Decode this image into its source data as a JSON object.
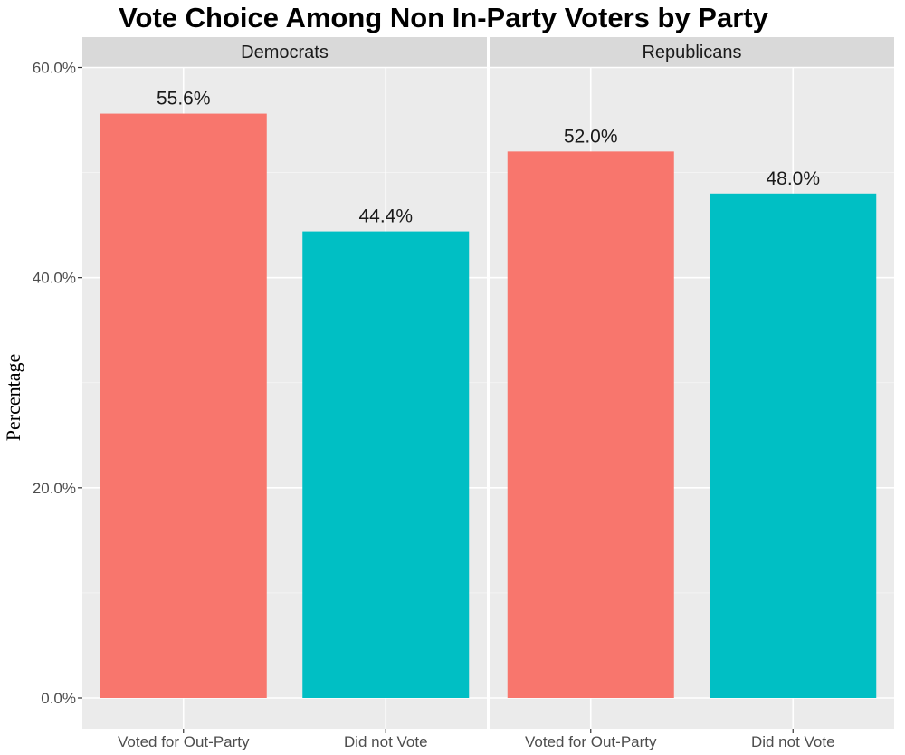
{
  "chart_data": {
    "type": "bar",
    "title": "Vote Choice Among Non In-Party Voters by Party",
    "ylabel": "Percentage",
    "xlabel": "",
    "ylim": [
      0,
      62
    ],
    "yticks": [
      "0.0%",
      "20.0%",
      "40.0%",
      "60.0%"
    ],
    "ytick_values": [
      0,
      20,
      40,
      60
    ],
    "grid": true,
    "legend": "none",
    "colors": {
      "Voted for Out-Party": "#F8766D",
      "Did not Vote": "#00BFC4"
    },
    "facets": [
      {
        "name": "Democrats",
        "categories": [
          "Voted for Out-Party",
          "Did not Vote"
        ],
        "values": [
          55.6,
          44.4
        ],
        "labels": [
          "55.6%",
          "44.4%"
        ]
      },
      {
        "name": "Republicans",
        "categories": [
          "Voted for Out-Party",
          "Did not Vote"
        ],
        "values": [
          52.0,
          48.0
        ],
        "labels": [
          "52.0%",
          "48.0%"
        ]
      }
    ]
  }
}
